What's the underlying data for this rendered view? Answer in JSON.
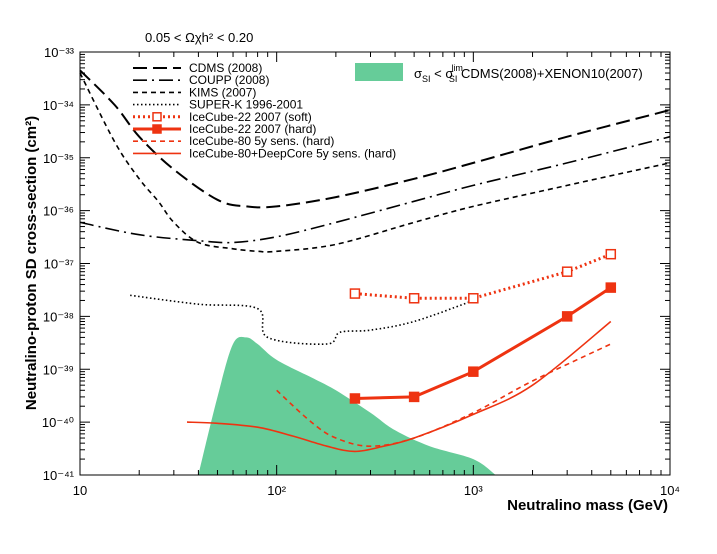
{
  "chart_data": {
    "type": "line",
    "x_scale": "log",
    "y_scale": "log",
    "xlim": [
      10,
      10000
    ],
    "ylim": [
      1e-41,
      1e-33
    ],
    "title": "0.05 < Ωχh² < 0.20",
    "xlabel": "Neutralino mass (GeV)",
    "ylabel": "Neutralino-proton SD cross-section (cm²)",
    "x_ticks": [
      10,
      100,
      1000,
      10000
    ],
    "y_ticks": [
      1e-41,
      1e-40,
      1e-39,
      1e-38,
      1e-37,
      1e-36,
      1e-35,
      1e-34,
      1e-33
    ],
    "x_tick_labels": [
      "10",
      "10²",
      "10³",
      "10⁴"
    ],
    "y_tick_labels": [
      "10⁻⁴¹",
      "10⁻⁴⁰",
      "10⁻³⁹",
      "10⁻³⁸",
      "10⁻³⁷",
      "10⁻³⁶",
      "10⁻³⁵",
      "10⁻³⁴",
      "10⁻³³"
    ],
    "band": {
      "name": "σSI < σSI lim CDMS(2008)+XENON10(2007)",
      "label_main": "σ",
      "label_sub1": "SI",
      "label_mid": " < σ",
      "label_sup": "lim",
      "label_sub2": "SI",
      "label_tail": " CDMS(2008)+XENON10(2007)",
      "color": "#66cc99",
      "upper": [
        [
          40,
          1e-41
        ],
        [
          50,
          3e-40
        ],
        [
          60,
          3e-39
        ],
        [
          70,
          4e-39
        ],
        [
          80,
          3e-39
        ],
        [
          100,
          1.5e-39
        ],
        [
          150,
          7e-40
        ],
        [
          200,
          4e-40
        ],
        [
          300,
          1.5e-40
        ],
        [
          400,
          7e-41
        ],
        [
          600,
          3.5e-41
        ],
        [
          1000,
          2e-41
        ],
        [
          1300,
          1e-41
        ]
      ]
    },
    "series": [
      {
        "name": "CDMS (2008)",
        "style": "long-dash",
        "color": "#000000",
        "points": [
          [
            10,
            4.5e-34
          ],
          [
            15,
            1e-34
          ],
          [
            20,
            2.5e-35
          ],
          [
            30,
            6e-36
          ],
          [
            50,
            1.6e-36
          ],
          [
            70,
            1.2e-36
          ],
          [
            100,
            1.2e-36
          ],
          [
            200,
            1.8e-36
          ],
          [
            500,
            4e-36
          ],
          [
            1000,
            8e-36
          ],
          [
            3000,
            2.5e-35
          ],
          [
            10000,
            8e-35
          ]
        ]
      },
      {
        "name": "COUPP (2008)",
        "style": "dash-dot",
        "color": "#000000",
        "points": [
          [
            10,
            6e-37
          ],
          [
            20,
            3.5e-37
          ],
          [
            40,
            2.7e-37
          ],
          [
            60,
            2.5e-37
          ],
          [
            100,
            3.2e-37
          ],
          [
            200,
            6e-37
          ],
          [
            500,
            1.5e-36
          ],
          [
            1000,
            3e-36
          ],
          [
            3000,
            8e-36
          ],
          [
            10000,
            2.5e-35
          ]
        ]
      },
      {
        "name": "KIMS (2007)",
        "style": "dash",
        "color": "#000000",
        "points": [
          [
            10,
            4e-34
          ],
          [
            15,
            2e-35
          ],
          [
            20,
            4e-36
          ],
          [
            25,
            1.5e-36
          ],
          [
            30,
            6e-37
          ],
          [
            40,
            2.5e-37
          ],
          [
            60,
            1.9e-37
          ],
          [
            80,
            1.7e-37
          ],
          [
            100,
            1.7e-37
          ],
          [
            200,
            2.3e-37
          ],
          [
            500,
            6e-37
          ],
          [
            1000,
            1.2e-36
          ],
          [
            3000,
            3e-36
          ],
          [
            10000,
            8e-36
          ]
        ]
      },
      {
        "name": "SUPER-K 1996-2001",
        "style": "dotted",
        "color": "#000000",
        "points": [
          [
            18,
            2.5e-38
          ],
          [
            40,
            1.7e-38
          ],
          [
            80,
            1.4e-38
          ],
          [
            90,
            4e-39
          ],
          [
            180,
            3e-39
          ],
          [
            210,
            5e-39
          ],
          [
            300,
            5.5e-39
          ],
          [
            500,
            8e-39
          ],
          [
            1000,
            2e-38
          ]
        ]
      },
      {
        "name": "IceCube-22 2007 (soft)",
        "style": "dotted-thick-open-square",
        "color": "#ee3311",
        "points": [
          [
            250,
            2.7e-38
          ],
          [
            500,
            2.2e-38
          ],
          [
            1000,
            2.2e-38
          ],
          [
            3000,
            7e-38
          ],
          [
            5000,
            1.5e-37
          ]
        ]
      },
      {
        "name": "IceCube-22 2007 (hard)",
        "style": "solid-thick-filled-square",
        "color": "#ee3311",
        "points": [
          [
            250,
            2.8e-40
          ],
          [
            500,
            3e-40
          ],
          [
            1000,
            9e-40
          ],
          [
            3000,
            1e-38
          ],
          [
            5000,
            3.5e-38
          ]
        ]
      },
      {
        "name": "IceCube-80 5y sens. (hard)",
        "style": "dash",
        "color": "#ee3311",
        "points": [
          [
            100,
            4e-40
          ],
          [
            150,
            1e-40
          ],
          [
            200,
            5e-41
          ],
          [
            300,
            3.5e-41
          ],
          [
            500,
            5e-41
          ],
          [
            1000,
            1.5e-40
          ],
          [
            2000,
            6e-40
          ],
          [
            5000,
            3e-39
          ]
        ]
      },
      {
        "name": "IceCube-80+DeepCore 5y sens. (hard)",
        "style": "solid",
        "color": "#ee3311",
        "points": [
          [
            35,
            1e-40
          ],
          [
            50,
            9.5e-41
          ],
          [
            80,
            8e-41
          ],
          [
            120,
            5.5e-41
          ],
          [
            180,
            3.5e-41
          ],
          [
            250,
            2.8e-41
          ],
          [
            350,
            3.5e-41
          ],
          [
            500,
            5e-41
          ],
          [
            1000,
            1.4e-40
          ],
          [
            2000,
            5e-40
          ],
          [
            5000,
            8e-39
          ]
        ]
      }
    ]
  }
}
